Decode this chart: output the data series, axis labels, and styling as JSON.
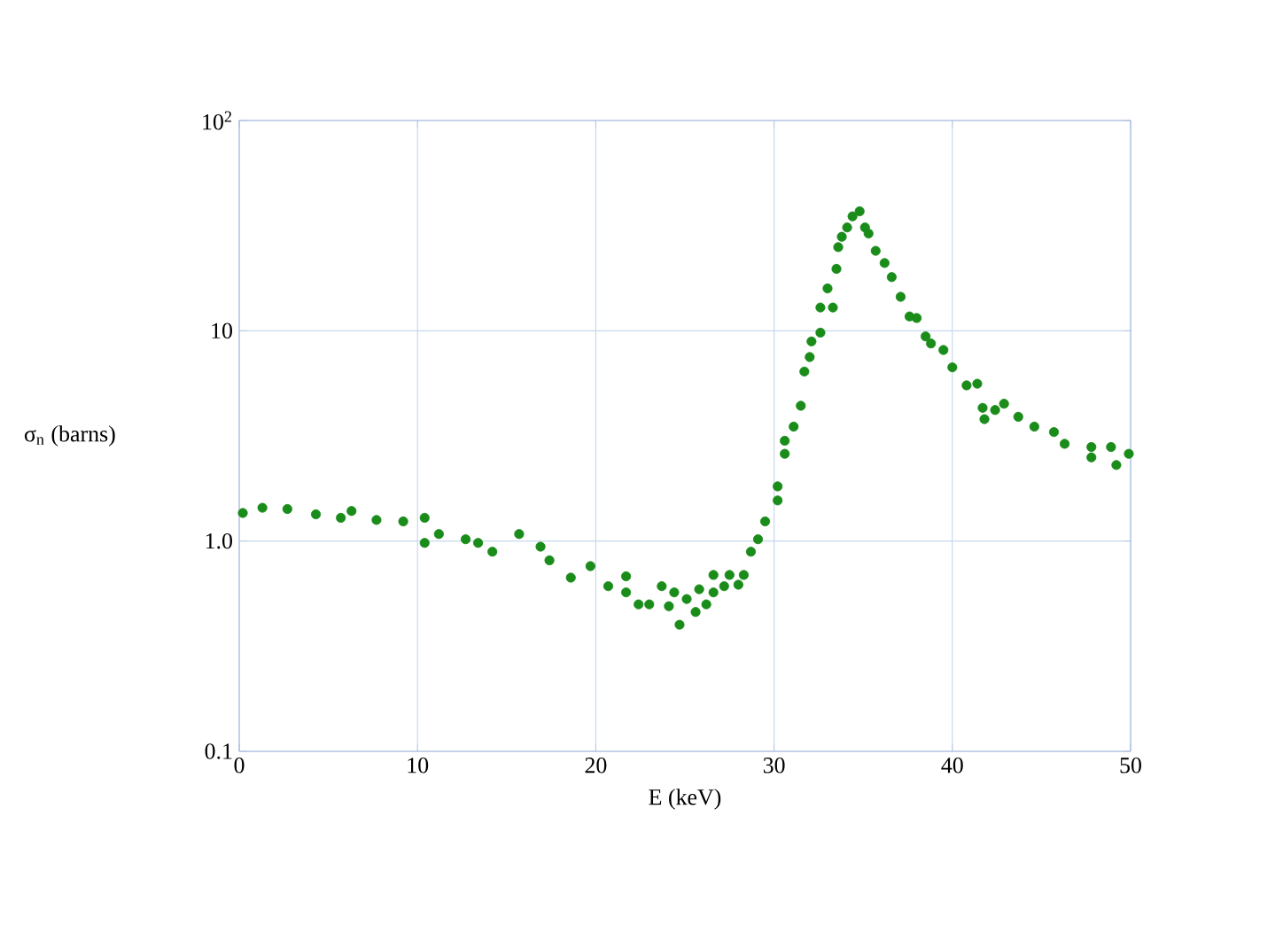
{
  "chart_data": {
    "type": "scatter",
    "xlabel": "E (keV)",
    "ylabel": "σ$_{n}$ (barns)",
    "log": "y",
    "grid": true,
    "marker": "circle",
    "xlim": [
      0,
      50
    ],
    "xticks": [
      0,
      10,
      20,
      30,
      40,
      50
    ],
    "ylim": [
      0.1,
      100
    ],
    "yticks": [
      {
        "value": 0.1,
        "label": "0.1"
      },
      {
        "value": 1,
        "label": "1.0"
      },
      {
        "value": 10,
        "label": "10"
      },
      {
        "value": 100,
        "label": "10$^{2}$"
      }
    ],
    "x": [
      0.2,
      1.3,
      2.7,
      4.3,
      5.7,
      6.3,
      7.7,
      9.2,
      10.4,
      10.4,
      11.2,
      12.7,
      13.4,
      14.2,
      15.7,
      16.9,
      17.4,
      18.6,
      19.7,
      20.7,
      21.7,
      21.7,
      22.4,
      23.0,
      23.7,
      24.1,
      24.4,
      24.7,
      25.1,
      25.6,
      25.8,
      26.2,
      26.6,
      26.6,
      27.2,
      27.5,
      28.0,
      28.3,
      28.7,
      29.1,
      29.5,
      30.2,
      30.2,
      30.6,
      30.6,
      31.1,
      31.5,
      31.7,
      32.0,
      32.1,
      32.6,
      32.6,
      33.3,
      33.0,
      33.5,
      33.6,
      33.8,
      34.1,
      34.4,
      34.8,
      35.1,
      35.3,
      35.7,
      36.2,
      36.6,
      37.1,
      37.6,
      38.0,
      38.5,
      38.8,
      39.5,
      40.0,
      40.8,
      41.4,
      41.7,
      41.8,
      42.4,
      42.9,
      43.7,
      44.6,
      45.7,
      46.3,
      47.8,
      47.8,
      48.9,
      49.2,
      49.9
    ],
    "series": [
      {
        "color": "#1a8c1a",
        "values": [
          1.36,
          1.44,
          1.42,
          1.34,
          1.29,
          1.39,
          1.26,
          1.24,
          1.29,
          0.98,
          1.08,
          1.02,
          0.98,
          0.89,
          1.08,
          0.94,
          0.81,
          0.67,
          0.76,
          0.61,
          0.68,
          0.57,
          0.5,
          0.5,
          0.61,
          0.49,
          0.57,
          0.4,
          0.53,
          0.46,
          0.59,
          0.5,
          0.69,
          0.57,
          0.61,
          0.69,
          0.62,
          0.69,
          0.89,
          1.02,
          1.24,
          1.56,
          1.82,
          2.6,
          3.0,
          3.5,
          4.4,
          6.4,
          7.5,
          8.9,
          9.8,
          12.9,
          12.9,
          15.9,
          19.7,
          25,
          28,
          31,
          35,
          37,
          31,
          29,
          24,
          21,
          18,
          14.5,
          11.7,
          11.5,
          9.4,
          8.7,
          8.1,
          6.7,
          5.5,
          5.6,
          4.3,
          3.8,
          4.2,
          4.5,
          3.9,
          3.5,
          3.3,
          2.9,
          2.8,
          2.5,
          2.8,
          2.3,
          2.6
        ]
      }
    ]
  }
}
